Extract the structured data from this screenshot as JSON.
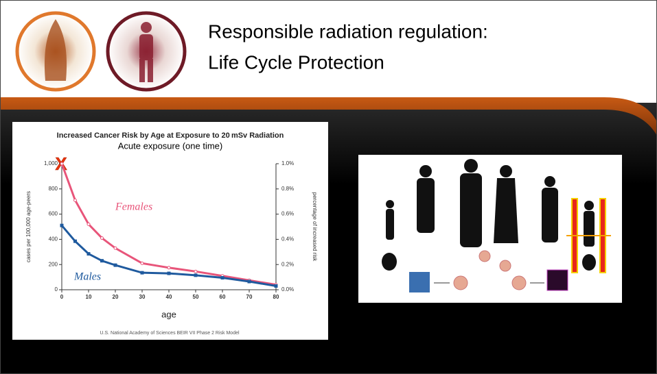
{
  "slide": {
    "title": [
      "Responsible radiation regulation:",
      "Life Cycle Protection"
    ]
  },
  "chart_data": {
    "type": "line",
    "title": "Increased Cancer Risk by Age at Exposure to  20 mSv  Radiation",
    "subtitle": "Acute exposure (one time)",
    "xlabel": "age",
    "ylabel": "cases per 100,000 age-peers",
    "y2label": "percentage of increased risk",
    "footnote": "U.S. National Academy of Sciences BEIR VII Phase 2 Risk Model",
    "annotations": [
      "Females",
      "Males",
      "X"
    ],
    "x": [
      0,
      5,
      10,
      15,
      20,
      30,
      40,
      50,
      60,
      70,
      80
    ],
    "series": [
      {
        "name": "Females",
        "color": "#e8557a",
        "values": [
          1000,
          710,
          520,
          410,
          330,
          210,
          175,
          145,
          110,
          75,
          40
        ]
      },
      {
        "name": "Males",
        "color": "#1f5a9e",
        "values": [
          510,
          385,
          285,
          230,
          195,
          135,
          130,
          115,
          95,
          65,
          30
        ]
      }
    ],
    "xlim": [
      0,
      80
    ],
    "xticks": [
      0,
      10,
      20,
      30,
      40,
      50,
      60,
      70,
      80
    ],
    "ylim": [
      0,
      1000
    ],
    "yticks": [
      0,
      200,
      400,
      600,
      800,
      {
        "value": 1000,
        "label": "1,000"
      }
    ],
    "y2lim": [
      0,
      1
    ],
    "y2ticks": [
      {
        "value": 0,
        "label": "0.0%"
      },
      {
        "value": 0.2,
        "label": "0.2%"
      },
      {
        "value": 0.4,
        "label": "0.4%"
      },
      {
        "value": 0.6,
        "label": "0.6%"
      },
      {
        "value": 0.8,
        "label": "0.8%"
      },
      {
        "value": 1,
        "label": "1.0%"
      }
    ],
    "grid": false
  }
}
